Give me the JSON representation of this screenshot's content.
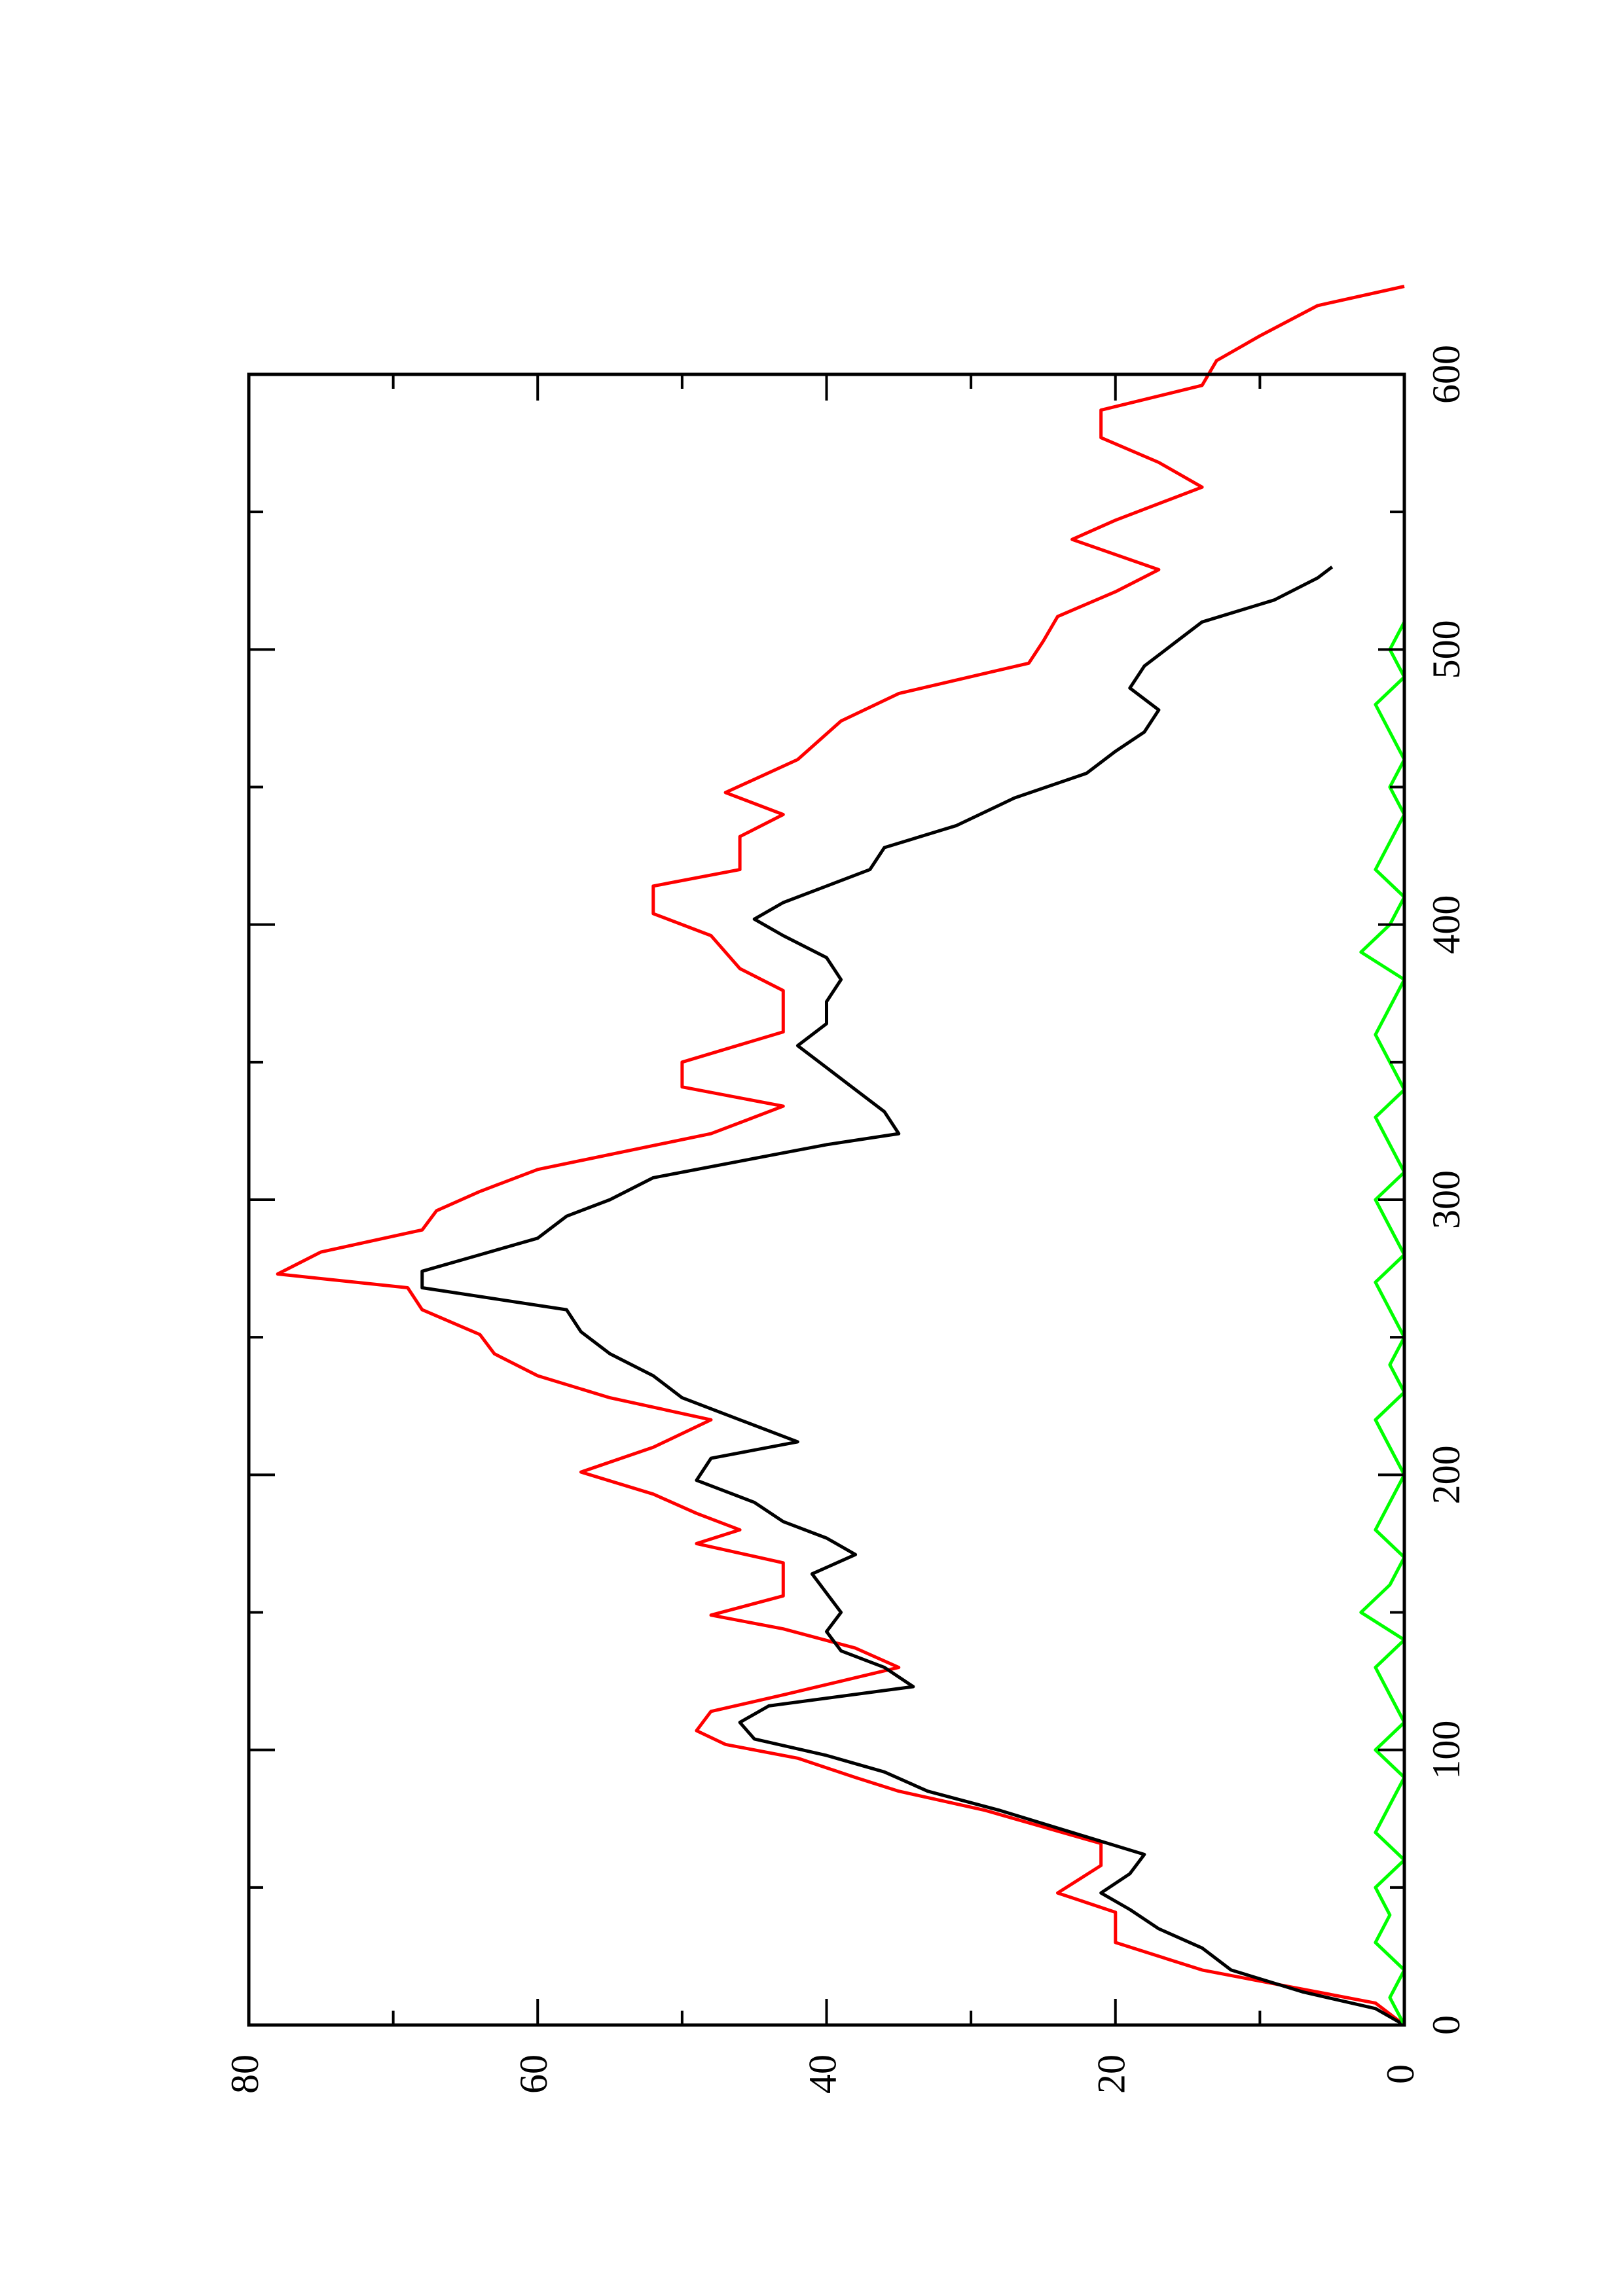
{
  "chart_data": {
    "type": "line",
    "orientation": "rotated 90 degrees counter-clockwise on page",
    "title": "",
    "xlabel": "",
    "ylabel": "",
    "xlim": [
      0,
      600
    ],
    "ylim": [
      0,
      80
    ],
    "x_ticks": [
      0,
      100,
      200,
      300,
      400,
      500,
      600
    ],
    "x_minor_ticks": [
      50,
      150,
      250,
      350,
      450,
      550
    ],
    "y_ticks": [
      0,
      20,
      40,
      60,
      80
    ],
    "y_minor_ticks": [
      10,
      30,
      50,
      70
    ],
    "x_tick_labels": [
      "0",
      "100",
      "200",
      "300",
      "400",
      "500",
      "600"
    ],
    "y_tick_labels": [
      "0",
      "20",
      "40",
      "60",
      "80"
    ],
    "grid": false,
    "legend": "none",
    "series": [
      {
        "color": "#ff0000",
        "style": "step",
        "points": [
          [
            0,
            0
          ],
          [
            8,
            2
          ],
          [
            14,
            8
          ],
          [
            20,
            14
          ],
          [
            30,
            20
          ],
          [
            41,
            20
          ],
          [
            48,
            24
          ],
          [
            58,
            21
          ],
          [
            66,
            21
          ],
          [
            72,
            25
          ],
          [
            78,
            29
          ],
          [
            85,
            35
          ],
          [
            90,
            38
          ],
          [
            97,
            42
          ],
          [
            102,
            47
          ],
          [
            107,
            49
          ],
          [
            114,
            48
          ],
          [
            120,
            43
          ],
          [
            130,
            35
          ],
          [
            137,
            38
          ],
          [
            144,
            43
          ],
          [
            149,
            48
          ],
          [
            156,
            43
          ],
          [
            168,
            43
          ],
          [
            175,
            49
          ],
          [
            180,
            46
          ],
          [
            186,
            49
          ],
          [
            193,
            52
          ],
          [
            201,
            57
          ],
          [
            210,
            52
          ],
          [
            220,
            48
          ],
          [
            228,
            55
          ],
          [
            236,
            60
          ],
          [
            244,
            63
          ],
          [
            251,
            64
          ],
          [
            260,
            68
          ],
          [
            268,
            69
          ],
          [
            273,
            78
          ],
          [
            281,
            75
          ],
          [
            289,
            68
          ],
          [
            296,
            67
          ],
          [
            303,
            64
          ],
          [
            311,
            60
          ],
          [
            324,
            48
          ],
          [
            334,
            43
          ],
          [
            341,
            50
          ],
          [
            350,
            50
          ],
          [
            361,
            43
          ],
          [
            376,
            43
          ],
          [
            384,
            46
          ],
          [
            396,
            48
          ],
          [
            404,
            52
          ],
          [
            414,
            52
          ],
          [
            420,
            46
          ],
          [
            432,
            46
          ],
          [
            440,
            43
          ],
          [
            448,
            47
          ],
          [
            460,
            42
          ],
          [
            474,
            39
          ],
          [
            484,
            35
          ],
          [
            495,
            26
          ],
          [
            503,
            25
          ],
          [
            512,
            24
          ],
          [
            521,
            20
          ],
          [
            529,
            17
          ],
          [
            540,
            23
          ],
          [
            547,
            20
          ],
          [
            559,
            14
          ],
          [
            568,
            17
          ],
          [
            577,
            21
          ],
          [
            587,
            21
          ],
          [
            596,
            14
          ],
          [
            605,
            13
          ],
          [
            614,
            10
          ],
          [
            625,
            6
          ],
          [
            632,
            0
          ]
        ]
      },
      {
        "color": "#000000",
        "style": "line",
        "points": [
          [
            0,
            0
          ],
          [
            6,
            2
          ],
          [
            12,
            7
          ],
          [
            20,
            12
          ],
          [
            28,
            14
          ],
          [
            35,
            17
          ],
          [
            42,
            19
          ],
          [
            48,
            21
          ],
          [
            55,
            19
          ],
          [
            62,
            18
          ],
          [
            70,
            23
          ],
          [
            78,
            28
          ],
          [
            85,
            33
          ],
          [
            92,
            36
          ],
          [
            98,
            40
          ],
          [
            104,
            45
          ],
          [
            110,
            46
          ],
          [
            116,
            44
          ],
          [
            123,
            34
          ],
          [
            130,
            36
          ],
          [
            136,
            39
          ],
          [
            143,
            40
          ],
          [
            150,
            39
          ],
          [
            157,
            40
          ],
          [
            164,
            41
          ],
          [
            171,
            38
          ],
          [
            177,
            40
          ],
          [
            183,
            43
          ],
          [
            190,
            45
          ],
          [
            198,
            49
          ],
          [
            206,
            48
          ],
          [
            212,
            42
          ],
          [
            220,
            46
          ],
          [
            228,
            50
          ],
          [
            236,
            52
          ],
          [
            244,
            55
          ],
          [
            252,
            57
          ],
          [
            260,
            58
          ],
          [
            268,
            68
          ],
          [
            274,
            68
          ],
          [
            280,
            64
          ],
          [
            286,
            60
          ],
          [
            294,
            58
          ],
          [
            300,
            55
          ],
          [
            308,
            52
          ],
          [
            316,
            44
          ],
          [
            320,
            40
          ],
          [
            324,
            35
          ],
          [
            332,
            36
          ],
          [
            340,
            38
          ],
          [
            348,
            40
          ],
          [
            356,
            42
          ],
          [
            364,
            40
          ],
          [
            372,
            40
          ],
          [
            380,
            39
          ],
          [
            388,
            40
          ],
          [
            396,
            43
          ],
          [
            402,
            45
          ],
          [
            408,
            43
          ],
          [
            414,
            40
          ],
          [
            420,
            37
          ],
          [
            428,
            36
          ],
          [
            436,
            31
          ],
          [
            446,
            27
          ],
          [
            455,
            22
          ],
          [
            463,
            20
          ],
          [
            470,
            18
          ],
          [
            478,
            17
          ],
          [
            486,
            19
          ],
          [
            494,
            18
          ],
          [
            502,
            16
          ],
          [
            510,
            14
          ],
          [
            518,
            9
          ],
          [
            526,
            6
          ],
          [
            530,
            5
          ]
        ]
      },
      {
        "color": "#00ff00",
        "style": "line",
        "points": [
          [
            0,
            0
          ],
          [
            10,
            1
          ],
          [
            20,
            0
          ],
          [
            30,
            2
          ],
          [
            40,
            1
          ],
          [
            50,
            2
          ],
          [
            60,
            0
          ],
          [
            70,
            2
          ],
          [
            80,
            1
          ],
          [
            90,
            0
          ],
          [
            100,
            2
          ],
          [
            110,
            0
          ],
          [
            120,
            1
          ],
          [
            130,
            2
          ],
          [
            140,
            0
          ],
          [
            150,
            3
          ],
          [
            160,
            1
          ],
          [
            170,
            0
          ],
          [
            180,
            2
          ],
          [
            190,
            1
          ],
          [
            200,
            0
          ],
          [
            210,
            1
          ],
          [
            220,
            2
          ],
          [
            230,
            0
          ],
          [
            240,
            1
          ],
          [
            250,
            0
          ],
          [
            260,
            1
          ],
          [
            270,
            2
          ],
          [
            280,
            0
          ],
          [
            290,
            1
          ],
          [
            300,
            2
          ],
          [
            310,
            0
          ],
          [
            320,
            1
          ],
          [
            330,
            2
          ],
          [
            340,
            0
          ],
          [
            350,
            1
          ],
          [
            360,
            2
          ],
          [
            370,
            1
          ],
          [
            380,
            0
          ],
          [
            390,
            3
          ],
          [
            400,
            1
          ],
          [
            410,
            0
          ],
          [
            420,
            2
          ],
          [
            430,
            1
          ],
          [
            440,
            0
          ],
          [
            450,
            1
          ],
          [
            460,
            0
          ],
          [
            470,
            1
          ],
          [
            480,
            2
          ],
          [
            490,
            0
          ],
          [
            500,
            1
          ],
          [
            510,
            0
          ]
        ]
      }
    ]
  }
}
